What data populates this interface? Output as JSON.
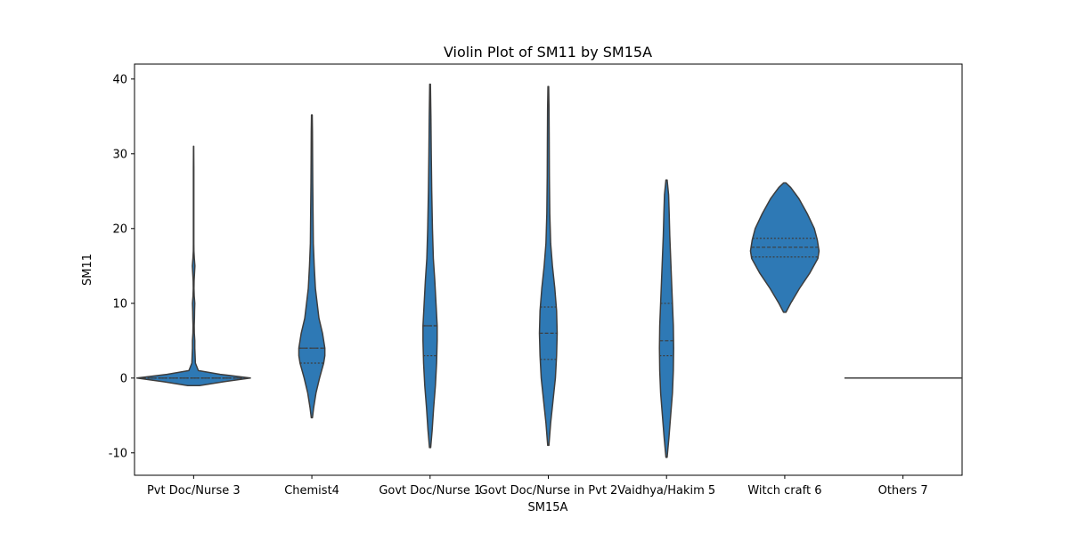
{
  "chart_data": {
    "type": "violin",
    "title": "Violin Plot of SM11 by SM15A",
    "xlabel": "SM15A",
    "ylabel": "SM11",
    "categories": [
      "Pvt Doc/Nurse 3",
      "Chemist4",
      "Govt Doc/Nurse 1",
      "Govt Doc/Nurse in Pvt 2",
      "Vaidhya/Hakim 5",
      "Witch craft 6",
      "Others 7"
    ],
    "ylim": [
      -13,
      42
    ],
    "yticks": [
      -10,
      0,
      10,
      20,
      30,
      40
    ],
    "color": "#2e79b5",
    "edge_color": "#3d3d3d",
    "inner": "quartile",
    "violins": [
      {
        "category": "Pvt Doc/Nurse 3",
        "min": -1,
        "max": 31,
        "quartiles": [
          0,
          0,
          0
        ],
        "density": [
          [
            -1,
            0.1
          ],
          [
            -0.5,
            0.5
          ],
          [
            0,
            0.96
          ],
          [
            0.5,
            0.45
          ],
          [
            1,
            0.08
          ],
          [
            2,
            0.03
          ],
          [
            3,
            0.025
          ],
          [
            4,
            0.02
          ],
          [
            5,
            0.02
          ],
          [
            6,
            0.012
          ],
          [
            7,
            0.01
          ],
          [
            8,
            0.014
          ],
          [
            9,
            0.016
          ],
          [
            10,
            0.02
          ],
          [
            11,
            0.01
          ],
          [
            12,
            0.006
          ],
          [
            13,
            0.008
          ],
          [
            14,
            0.015
          ],
          [
            15,
            0.022
          ],
          [
            16,
            0.012
          ],
          [
            17,
            0.005
          ],
          [
            18,
            0.004
          ],
          [
            20,
            0.004
          ],
          [
            22,
            0.004
          ],
          [
            25,
            0.004
          ],
          [
            28,
            0.004
          ],
          [
            31,
            0.002
          ]
        ]
      },
      {
        "category": "Chemist4",
        "min": -5.3,
        "max": 35.2,
        "quartiles": [
          2,
          4,
          4
        ],
        "density": [
          [
            -5.3,
            0.01
          ],
          [
            -4,
            0.03
          ],
          [
            -2,
            0.07
          ],
          [
            0,
            0.13
          ],
          [
            2,
            0.2
          ],
          [
            3,
            0.22
          ],
          [
            4,
            0.22
          ],
          [
            6,
            0.18
          ],
          [
            8,
            0.12
          ],
          [
            10,
            0.09
          ],
          [
            12,
            0.06
          ],
          [
            15,
            0.04
          ],
          [
            18,
            0.025
          ],
          [
            22,
            0.02
          ],
          [
            26,
            0.015
          ],
          [
            30,
            0.012
          ],
          [
            33,
            0.01
          ],
          [
            35.2,
            0.006
          ]
        ]
      },
      {
        "category": "Govt Doc/Nurse 1",
        "min": -9.3,
        "max": 39.3,
        "quartiles": [
          3,
          7,
          7
        ],
        "density": [
          [
            -9.3,
            0.01
          ],
          [
            -7,
            0.035
          ],
          [
            -4,
            0.06
          ],
          [
            -1,
            0.09
          ],
          [
            2,
            0.11
          ],
          [
            5,
            0.12
          ],
          [
            7,
            0.12
          ],
          [
            10,
            0.1
          ],
          [
            13,
            0.08
          ],
          [
            16,
            0.055
          ],
          [
            20,
            0.04
          ],
          [
            25,
            0.028
          ],
          [
            30,
            0.02
          ],
          [
            35,
            0.014
          ],
          [
            39.3,
            0.006
          ]
        ]
      },
      {
        "category": "Govt Doc/Nurse in Pvt 2",
        "min": -9,
        "max": 39,
        "quartiles": [
          2.5,
          6,
          9.5
        ],
        "density": [
          [
            -9,
            0.01
          ],
          [
            -6,
            0.04
          ],
          [
            -3,
            0.08
          ],
          [
            0,
            0.12
          ],
          [
            3,
            0.14
          ],
          [
            6,
            0.15
          ],
          [
            9,
            0.14
          ],
          [
            12,
            0.11
          ],
          [
            15,
            0.07
          ],
          [
            18,
            0.04
          ],
          [
            22,
            0.025
          ],
          [
            27,
            0.018
          ],
          [
            32,
            0.015
          ],
          [
            36,
            0.012
          ],
          [
            39,
            0.006
          ]
        ]
      },
      {
        "category": "Vaidhya/Hakim 5",
        "min": -10.6,
        "max": 26.5,
        "quartiles": [
          3,
          5,
          10
        ],
        "density": [
          [
            -10.6,
            0.01
          ],
          [
            -8,
            0.04
          ],
          [
            -5,
            0.07
          ],
          [
            -2,
            0.1
          ],
          [
            1,
            0.115
          ],
          [
            4,
            0.12
          ],
          [
            7,
            0.115
          ],
          [
            10,
            0.1
          ],
          [
            13,
            0.085
          ],
          [
            16,
            0.07
          ],
          [
            19,
            0.055
          ],
          [
            22,
            0.045
          ],
          [
            24.5,
            0.035
          ],
          [
            26.5,
            0.01
          ]
        ]
      },
      {
        "category": "Witch craft 6",
        "min": 8.8,
        "max": 26.1,
        "quartiles": [
          16.2,
          17.5,
          18.7
        ],
        "density": [
          [
            8.8,
            0.02
          ],
          [
            10,
            0.1
          ],
          [
            12,
            0.25
          ],
          [
            14,
            0.42
          ],
          [
            16,
            0.56
          ],
          [
            17,
            0.58
          ],
          [
            18.5,
            0.55
          ],
          [
            20,
            0.5
          ],
          [
            22,
            0.38
          ],
          [
            24,
            0.24
          ],
          [
            25.5,
            0.1
          ],
          [
            26.1,
            0.02
          ]
        ]
      },
      {
        "category": "Others 7",
        "min": 0,
        "max": 0,
        "quartiles": [
          0,
          0,
          0
        ],
        "density": [
          [
            0,
            0.99
          ]
        ]
      }
    ]
  }
}
